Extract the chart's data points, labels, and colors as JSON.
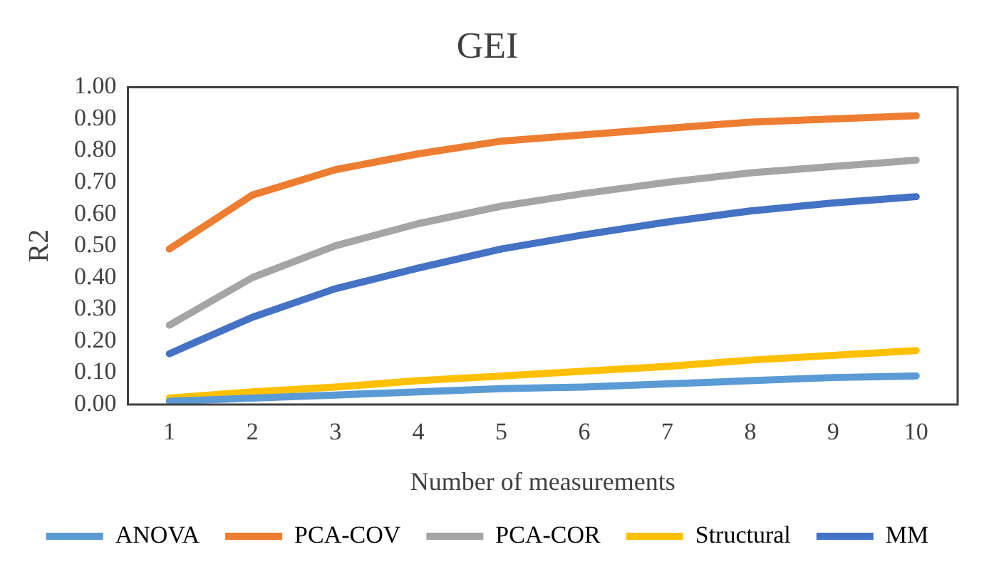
{
  "chart_data": {
    "type": "line",
    "title": "GEI",
    "xlabel": "Number of measurements",
    "ylabel": "R2",
    "categories": [
      "1",
      "2",
      "3",
      "4",
      "5",
      "6",
      "7",
      "8",
      "9",
      "10"
    ],
    "series": [
      {
        "name": "ANOVA",
        "color": "#5b9bd5",
        "values": [
          0.01,
          0.02,
          0.03,
          0.04,
          0.05,
          0.055,
          0.065,
          0.075,
          0.085,
          0.09
        ]
      },
      {
        "name": "PCA-COV",
        "color": "#ed7d31",
        "values": [
          0.49,
          0.66,
          0.74,
          0.79,
          0.83,
          0.85,
          0.87,
          0.89,
          0.9,
          0.91
        ]
      },
      {
        "name": "PCA-COR",
        "color": "#a5a5a5",
        "values": [
          0.25,
          0.4,
          0.5,
          0.57,
          0.625,
          0.665,
          0.7,
          0.73,
          0.75,
          0.77
        ]
      },
      {
        "name": "Structural",
        "color": "#ffc000",
        "values": [
          0.02,
          0.04,
          0.055,
          0.075,
          0.09,
          0.105,
          0.12,
          0.14,
          0.155,
          0.17
        ]
      },
      {
        "name": "MM",
        "color": "#4472c4",
        "values": [
          0.16,
          0.275,
          0.365,
          0.43,
          0.49,
          0.535,
          0.575,
          0.61,
          0.635,
          0.655
        ]
      }
    ],
    "ylim": [
      0,
      1
    ],
    "yticks": [
      {
        "value": 0,
        "label": "0.00"
      },
      {
        "value": 0.1,
        "label": "0.10"
      },
      {
        "value": 0.2,
        "label": "0.20"
      },
      {
        "value": 0.3,
        "label": "0.30"
      },
      {
        "value": 0.4,
        "label": "0.40"
      },
      {
        "value": 0.5,
        "label": "0.50"
      },
      {
        "value": 0.6,
        "label": "0.60"
      },
      {
        "value": 0.7,
        "label": "0.70"
      },
      {
        "value": 0.8,
        "label": "0.80"
      },
      {
        "value": 0.9,
        "label": "0.90"
      },
      {
        "value": 1,
        "label": "1.00"
      }
    ],
    "grid": false,
    "legend": "bottom",
    "marker": "none",
    "line_style": "solid"
  }
}
